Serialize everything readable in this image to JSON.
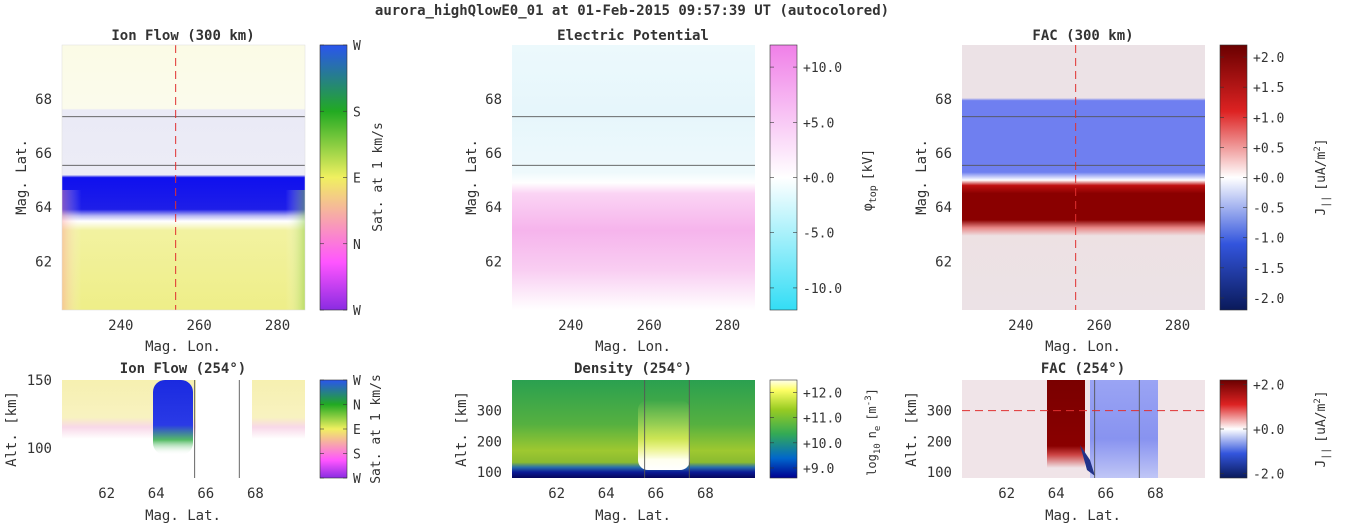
{
  "title": "aurora_highQlowE0_01 at 01-Feb-2015 09:57:39 UT (autocolored)",
  "colors": {
    "ref_line": "#e03030",
    "boundary_line": "#555555",
    "axis_text": "#333333"
  },
  "chart_data": [
    {
      "id": "ion_flow_map",
      "type": "heatmap",
      "title": "Ion Flow (300 km)",
      "xlabel": "Mag. Lon.",
      "ylabel": "Mag. Lat.",
      "xlim": [
        225,
        287
      ],
      "ylim": [
        60.2,
        70
      ],
      "xticks": [
        240,
        260,
        280
      ],
      "yticks": [
        62,
        64,
        66,
        68
      ],
      "ref_x": 254,
      "boundary_lines": [
        65.55,
        67.35
      ],
      "colorbar": {
        "label": "Sat. at 1 km/s",
        "ticks": [
          "W",
          "N",
          "E",
          "S",
          "W"
        ],
        "colors": [
          "#8a2be2",
          "#ff55ff",
          "#f0f060",
          "#22aa22",
          "#2a55ee"
        ]
      },
      "bands": [
        {
          "lat_range": [
            67.7,
            70
          ],
          "description_color": "#fbfbe8"
        },
        {
          "lat_range": [
            65.6,
            67.7
          ],
          "description_color": "#eeeef8"
        },
        {
          "lat_range": [
            64.7,
            65.4
          ],
          "description_color": "#1a1aee"
        },
        {
          "lat_range": [
            60.2,
            64.3
          ],
          "description_color": "#eeee88"
        }
      ]
    },
    {
      "id": "potential_map",
      "type": "heatmap",
      "title": "Electric Potential",
      "xlabel": "Mag. Lon.",
      "ylabel": "Mag. Lat.",
      "xlim": [
        225,
        287
      ],
      "ylim": [
        60.2,
        70
      ],
      "xticks": [
        240,
        260,
        280
      ],
      "yticks": [
        62,
        64,
        66,
        68
      ],
      "boundary_lines": [
        65.55,
        67.35
      ],
      "colorbar": {
        "label": "φ",
        "label_sub": "top",
        "label_unit": "[kV]",
        "ticks": [
          "-10.0",
          "-5.0",
          "+0.0",
          "+5.0",
          "+10.0"
        ],
        "tick_values": [
          -10,
          -5,
          0,
          5,
          10
        ],
        "range": [
          -12,
          12
        ],
        "colors": [
          "#33ddf5",
          "#ffffff",
          "#f080e8"
        ]
      }
    },
    {
      "id": "fac_map",
      "type": "heatmap",
      "title": "FAC (300 km)",
      "xlabel": "Mag. Lon.",
      "ylabel": "Mag. Lat.",
      "xlim": [
        225,
        287
      ],
      "ylim": [
        60.2,
        70
      ],
      "xticks": [
        240,
        260,
        280
      ],
      "yticks": [
        62,
        64,
        66,
        68
      ],
      "ref_x": 254,
      "boundary_lines": [
        65.55,
        67.35
      ],
      "colorbar": {
        "label": "J",
        "label_sub": "||",
        "label_unit": "[uA/m",
        "label_sup": "2",
        "label_end": "]",
        "ticks": [
          "-2.0",
          "-1.5",
          "-1.0",
          "-0.5",
          "+0.0",
          "+0.5",
          "+1.0",
          "+1.5",
          "+2.0"
        ],
        "tick_values": [
          -2,
          -1.5,
          -1,
          -0.5,
          0,
          0.5,
          1,
          1.5,
          2
        ],
        "range": [
          -2.2,
          2.2
        ],
        "colors": [
          "#0a1a5a",
          "#3355dd",
          "#ffffff",
          "#dd2222",
          "#6a0000"
        ]
      }
    },
    {
      "id": "ion_flow_alt",
      "type": "heatmap",
      "title": "Ion Flow (254°)",
      "xlabel": "Mag. Lat.",
      "ylabel": "Alt. [km]",
      "xlim": [
        60.2,
        70
      ],
      "ylim": [
        78,
        150
      ],
      "xticks": [
        62,
        64,
        66,
        68
      ],
      "yticks": [
        100,
        150
      ],
      "boundary_lines": [
        65.55,
        67.35
      ],
      "colorbar": {
        "label": "Sat. at 1 km/s",
        "ticks": [
          "W",
          "S",
          "E",
          "N",
          "W"
        ],
        "colors": [
          "#8a2be2",
          "#ff55ff",
          "#f0f060",
          "#22aa22",
          "#2a55ee"
        ]
      }
    },
    {
      "id": "density_alt",
      "type": "heatmap",
      "title": "Density (254°)",
      "xlabel": "Mag. Lat.",
      "ylabel": "Alt. [km]",
      "xlim": [
        60.2,
        70
      ],
      "ylim": [
        80,
        400
      ],
      "xticks": [
        62,
        64,
        66,
        68
      ],
      "yticks": [
        100,
        200,
        300
      ],
      "boundary_lines": [
        65.55,
        67.35
      ],
      "colorbar": {
        "label": "log",
        "label_sub": "10",
        "label_mid": "n",
        "label_sub2": "e",
        "label_unit": "[m",
        "label_sup": "-3",
        "label_end": "]",
        "ticks": [
          "+9.0",
          "+10.0",
          "+11.0",
          "+12.0"
        ],
        "tick_values": [
          9,
          10,
          11,
          12
        ],
        "range": [
          8.6,
          12.5
        ],
        "colors": [
          "#000090",
          "#0066cc",
          "#33aa55",
          "#99cc22",
          "#ffff66",
          "#ffffee"
        ]
      }
    },
    {
      "id": "fac_alt",
      "type": "heatmap",
      "title": "FAC (254°)",
      "xlabel": "Mag. Lat.",
      "ylabel": "Alt. [km]",
      "xlim": [
        60.2,
        70
      ],
      "ylim": [
        80,
        400
      ],
      "xticks": [
        62,
        64,
        66,
        68
      ],
      "yticks": [
        100,
        200,
        300
      ],
      "ref_y": 300,
      "boundary_lines": [
        65.55,
        67.35
      ],
      "colorbar": {
        "label": "J",
        "label_sub": "||",
        "label_unit": "[uA/m",
        "label_sup": "2",
        "label_end": "]",
        "ticks": [
          "-2.0",
          "+0.0",
          "+2.0"
        ],
        "tick_values": [
          -2,
          0,
          2
        ],
        "range": [
          -2.2,
          2.2
        ],
        "colors": [
          "#0a1a5a",
          "#3355dd",
          "#ffffff",
          "#dd2222",
          "#6a0000"
        ]
      }
    }
  ]
}
